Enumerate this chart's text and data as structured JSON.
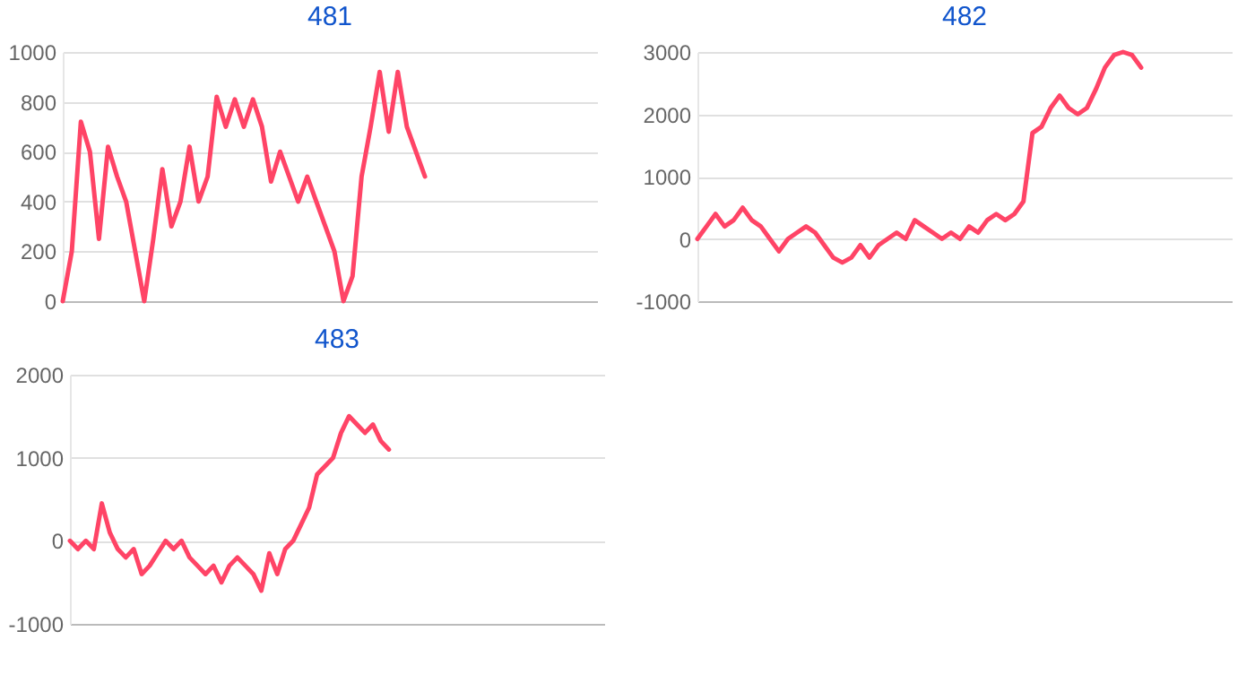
{
  "chart_data": [
    {
      "type": "line",
      "title": "481",
      "categories": [
        null,
        null,
        null,
        null,
        null,
        null,
        null,
        null,
        null,
        null,
        null,
        null,
        null,
        null,
        null,
        null,
        null,
        null,
        null,
        null,
        null,
        null,
        null,
        null,
        null,
        null,
        null,
        null,
        null,
        null,
        null,
        null,
        null,
        null,
        null,
        null,
        null,
        null,
        null,
        null,
        null,
        null,
        null,
        null,
        null,
        null,
        null,
        null,
        null,
        null,
        null,
        null,
        null,
        null,
        null,
        null,
        null,
        null,
        null,
        null
      ],
      "series": [
        {
          "color": "#ff4466",
          "values": [
            0,
            200,
            720,
            600,
            250,
            620,
            500,
            400,
            200,
            0,
            250,
            530,
            300,
            400,
            620,
            400,
            500,
            820,
            700,
            810,
            700,
            810,
            700,
            480,
            600,
            500,
            400,
            500,
            400,
            300,
            200,
            0,
            100,
            500,
            700,
            920,
            680,
            920,
            700,
            600,
            500,
            null,
            null,
            null,
            null,
            null,
            null,
            null,
            null,
            null,
            null,
            null,
            null,
            null,
            null,
            null,
            null,
            null,
            null,
            null
          ]
        }
      ],
      "ylim": [
        0,
        1000
      ],
      "yticks": [
        0,
        200,
        400,
        600,
        800,
        1000
      ],
      "grid": "y",
      "tick_labels": "y"
    },
    {
      "type": "line",
      "title": "482",
      "categories": [
        null,
        null,
        null,
        null,
        null,
        null,
        null,
        null,
        null,
        null,
        null,
        null,
        null,
        null,
        null,
        null,
        null,
        null,
        null,
        null,
        null,
        null,
        null,
        null,
        null,
        null,
        null,
        null,
        null,
        null,
        null,
        null,
        null,
        null,
        null,
        null,
        null,
        null,
        null,
        null,
        null,
        null,
        null,
        null,
        null,
        null,
        null,
        null,
        null,
        null,
        null,
        null,
        null,
        null,
        null,
        null,
        null,
        null,
        null,
        null
      ],
      "series": [
        {
          "color": "#ff4466",
          "values": [
            0,
            200,
            400,
            200,
            300,
            500,
            300,
            200,
            0,
            -200,
            0,
            100,
            200,
            100,
            -100,
            -300,
            -380,
            -300,
            -100,
            -300,
            -100,
            0,
            100,
            0,
            300,
            200,
            100,
            0,
            100,
            0,
            200,
            100,
            300,
            400,
            300,
            400,
            600,
            1700,
            1800,
            2100,
            2300,
            2100,
            2000,
            2100,
            2400,
            2750,
            2950,
            3000,
            2950,
            2750,
            null,
            null,
            null,
            null,
            null,
            null,
            null,
            null,
            null,
            null
          ]
        }
      ],
      "ylim": [
        -1000,
        3000
      ],
      "yticks": [
        -1000,
        0,
        1000,
        2000,
        3000
      ],
      "grid": "y",
      "tick_labels": "y"
    },
    {
      "type": "line",
      "title": "483",
      "categories": [
        null,
        null,
        null,
        null,
        null,
        null,
        null,
        null,
        null,
        null,
        null,
        null,
        null,
        null,
        null,
        null,
        null,
        null,
        null,
        null,
        null,
        null,
        null,
        null,
        null,
        null,
        null,
        null,
        null,
        null,
        null,
        null,
        null,
        null,
        null,
        null,
        null,
        null,
        null,
        null,
        null,
        null,
        null,
        null,
        null,
        null,
        null,
        null,
        null,
        null,
        null,
        null,
        null,
        null,
        null,
        null,
        null,
        null,
        null,
        null,
        null,
        null,
        null,
        null,
        null,
        null,
        null,
        null
      ],
      "series": [
        {
          "color": "#ff4466",
          "values": [
            0,
            -100,
            0,
            -100,
            450,
            100,
            -100,
            -200,
            -100,
            -400,
            -300,
            -150,
            0,
            -100,
            0,
            -200,
            -300,
            -400,
            -300,
            -500,
            -300,
            -200,
            -300,
            -400,
            -600,
            -150,
            -400,
            -100,
            0,
            200,
            400,
            800,
            900,
            1000,
            1300,
            1500,
            1400,
            1300,
            1400,
            1200,
            1100,
            null,
            null,
            null,
            null,
            null,
            null,
            null,
            null,
            null,
            null,
            null,
            null,
            null,
            null,
            null,
            null,
            null,
            null,
            null,
            null,
            null,
            null,
            null,
            null,
            null,
            null,
            null
          ]
        }
      ],
      "ylim": [
        -1000,
        2000
      ],
      "yticks": [
        -1000,
        0,
        1000,
        2000
      ],
      "grid": "y",
      "tick_labels": "y"
    }
  ]
}
